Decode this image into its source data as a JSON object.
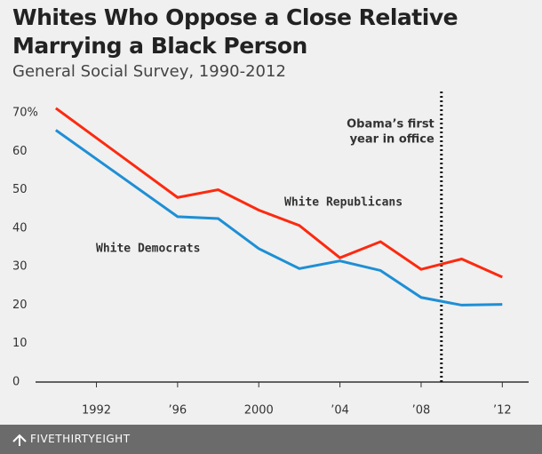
{
  "chart_data": {
    "type": "line",
    "title": "Whites Who Oppose a Close Relative Marrying a Black Person",
    "subtitle": "General Social Survey, 1990-2012",
    "x": [
      1990,
      1996,
      1998,
      2000,
      2002,
      2004,
      2006,
      2008,
      2010,
      2012
    ],
    "series": [
      {
        "name": "White Republicans",
        "color": "#fc2a0f",
        "values": [
          71.2,
          48,
          50,
          44.7,
          40.7,
          32.3,
          36.5,
          29.3,
          32,
          27.3
        ]
      },
      {
        "name": "White Democrats",
        "color": "#1e8fd5",
        "values": [
          65.5,
          43,
          42.5,
          34.7,
          29.5,
          31.5,
          29,
          22,
          20,
          20.2
        ]
      }
    ],
    "xlim": [
      1989,
      2013.3
    ],
    "xticks": [
      1992,
      {
        "value": 1996,
        "label": "’96"
      },
      2000,
      {
        "value": 2004,
        "label": "’04"
      },
      {
        "value": 2008,
        "label": "’08"
      },
      {
        "value": 2012,
        "label": "’12"
      }
    ],
    "ylim": [
      0,
      70
    ],
    "yticks": [
      0,
      10,
      20,
      30,
      40,
      50,
      60,
      {
        "value": 70,
        "label": "70%"
      }
    ],
    "annotation": {
      "x": 2009,
      "lines": [
        "Obama’s first",
        "year in office"
      ]
    },
    "footer": "FIVETHIRTYEIGHT"
  }
}
